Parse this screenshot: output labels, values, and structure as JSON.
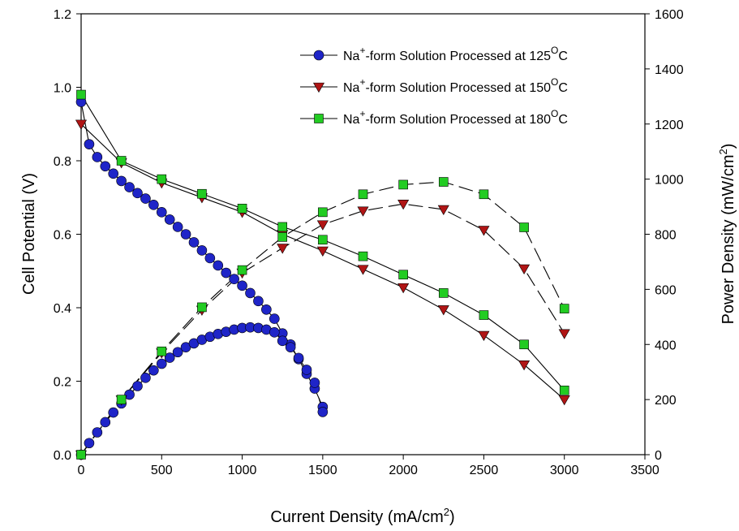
{
  "chart_data": {
    "type": "scatter",
    "xlabel": {
      "text": "Current Density (mA/cm",
      "sup": "2",
      "tail": ")"
    },
    "ylabel": "Cell Potential (V)",
    "y2label": {
      "text": "Power Density (mW/cm",
      "sup": "2",
      "tail": ")"
    },
    "xlim": [
      0,
      3500
    ],
    "ylim": [
      0,
      1.2
    ],
    "y2lim": [
      0,
      1600
    ],
    "x_ticks": [
      "0",
      "500",
      "1000",
      "1500",
      "2000",
      "2500",
      "3000",
      "3500"
    ],
    "y_ticks": [
      "0.0",
      "0.2",
      "0.4",
      "0.6",
      "0.8",
      "1.0",
      "1.2"
    ],
    "y2_ticks": [
      "0",
      "200",
      "400",
      "600",
      "800",
      "1000",
      "1200",
      "1400",
      "1600"
    ],
    "legend_position": "top-right",
    "series": [
      {
        "legend": {
          "pre": "Na",
          "sup1": "+",
          "mid": "-form Solution Processed at 125",
          "sup2": "O",
          "post": "C"
        },
        "marker": "circle",
        "color": "#1f25c8",
        "polarization": {
          "x": [
            0,
            50,
            100,
            150,
            200,
            250,
            300,
            350,
            400,
            450,
            500,
            550,
            600,
            650,
            700,
            750,
            800,
            850,
            900,
            950,
            1000,
            1050,
            1100,
            1150,
            1200,
            1250,
            1300,
            1350,
            1400,
            1450,
            1500
          ],
          "y": [
            0.96,
            0.845,
            0.81,
            0.785,
            0.765,
            0.745,
            0.728,
            0.712,
            0.697,
            0.68,
            0.66,
            0.64,
            0.62,
            0.6,
            0.578,
            0.556,
            0.535,
            0.515,
            0.495,
            0.478,
            0.46,
            0.44,
            0.418,
            0.395,
            0.37,
            0.33,
            0.3,
            0.26,
            0.22,
            0.18,
            0.13
          ]
        },
        "power": {
          "x": [
            0,
            50,
            100,
            150,
            200,
            250,
            300,
            350,
            400,
            450,
            500,
            550,
            600,
            650,
            700,
            750,
            800,
            850,
            900,
            950,
            1000,
            1050,
            1100,
            1150,
            1200,
            1250,
            1300,
            1350,
            1400,
            1450,
            1500
          ],
          "y": [
            0,
            42,
            81,
            118,
            153,
            186,
            218,
            249,
            279,
            306,
            330,
            352,
            372,
            390,
            404,
            417,
            428,
            438,
            446,
            454,
            460,
            462,
            460,
            454,
            444,
            413,
            390,
            351,
            308,
            261,
            155
          ]
        }
      },
      {
        "legend": {
          "pre": "Na",
          "sup1": "+",
          "mid": "-form Solution Processed at 150",
          "sup2": "O",
          "post": "C"
        },
        "marker": "triangle-down",
        "color": "#b01515",
        "polarization": {
          "x": [
            0,
            250,
            500,
            750,
            1000,
            1250,
            1500,
            1750,
            2000,
            2250,
            2500,
            2750,
            3000
          ],
          "y": [
            0.9,
            0.795,
            0.74,
            0.7,
            0.66,
            0.6,
            0.555,
            0.505,
            0.455,
            0.395,
            0.325,
            0.245,
            0.15
          ]
        },
        "power": {
          "x": [
            0,
            250,
            500,
            750,
            1000,
            1250,
            1500,
            1750,
            2000,
            2250,
            2500,
            2750,
            3000
          ],
          "y": [
            0,
            199,
            370,
            525,
            660,
            750,
            835,
            885,
            910,
            890,
            815,
            675,
            440
          ]
        }
      },
      {
        "legend": {
          "pre": "Na",
          "sup1": "+",
          "mid": "-form Solution Processed at 180",
          "sup2": "O",
          "post": "C"
        },
        "marker": "square",
        "color": "#22cc22",
        "polarization": {
          "x": [
            0,
            250,
            500,
            750,
            1000,
            1250,
            1500,
            1750,
            2000,
            2250,
            2500,
            2750,
            3000
          ],
          "y": [
            0.98,
            0.8,
            0.75,
            0.71,
            0.67,
            0.62,
            0.585,
            0.54,
            0.49,
            0.44,
            0.38,
            0.3,
            0.175
          ]
        },
        "power": {
          "x": [
            0,
            250,
            500,
            750,
            1000,
            1250,
            1500,
            1750,
            2000,
            2250,
            2500,
            2750,
            3000
          ],
          "y": [
            0,
            200,
            375,
            535,
            670,
            790,
            880,
            945,
            980,
            990,
            945,
            825,
            530
          ]
        }
      }
    ]
  }
}
